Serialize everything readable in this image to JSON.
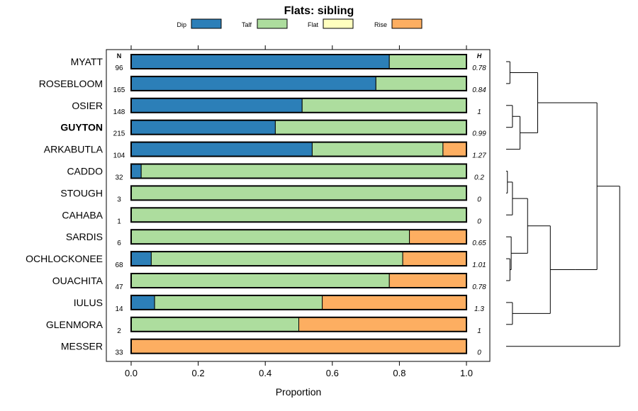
{
  "chart_data": {
    "type": "bar",
    "title": "Flats: sibling",
    "xlabel": "Proportion",
    "ylabel": "",
    "xlim": [
      0,
      1
    ],
    "x_ticks": [
      "0.0",
      "0.2",
      "0.4",
      "0.6",
      "0.8",
      "1.0"
    ],
    "x_tick_values": [
      0,
      0.2,
      0.4,
      0.6,
      0.8,
      1.0
    ],
    "n_header": "N",
    "h_header": "H",
    "highlight_category": "GUYTON",
    "legend": [
      {
        "name": "Dip",
        "color": "#2c7fb8"
      },
      {
        "name": "Talf",
        "color": "#addd9e"
      },
      {
        "name": "Flat",
        "color": "#ffffbf"
      },
      {
        "name": "Rise",
        "color": "#fdae61"
      }
    ],
    "categories": [
      "MYATT",
      "ROSEBLOOM",
      "OSIER",
      "GUYTON",
      "ARKABUTLA",
      "CADDO",
      "STOUGH",
      "CAHABA",
      "SARDIS",
      "OCHLOCKONEE",
      "OUACHITA",
      "IULUS",
      "GLENMORA",
      "MESSER"
    ],
    "n": [
      "96",
      "165",
      "148",
      "215",
      "104",
      "32",
      "3",
      "1",
      "6",
      "68",
      "47",
      "14",
      "2",
      "33"
    ],
    "h": [
      "0.78",
      "0.84",
      "1",
      "0.99",
      "1.27",
      "0.2",
      "0",
      "0",
      "0.65",
      "1.01",
      "0.78",
      "1.3",
      "1",
      "0"
    ],
    "series": [
      {
        "name": "Dip",
        "values": [
          0.77,
          0.73,
          0.51,
          0.43,
          0.54,
          0.03,
          0,
          0,
          0,
          0.06,
          0,
          0.07,
          0,
          0
        ]
      },
      {
        "name": "Talf",
        "values": [
          0.23,
          0.27,
          0.49,
          0.57,
          0.39,
          0.97,
          1,
          1,
          0.83,
          0.75,
          0.77,
          0.5,
          0.5,
          0
        ]
      },
      {
        "name": "Flat",
        "values": [
          0,
          0,
          0,
          0,
          0,
          0,
          0,
          0,
          0,
          0,
          0,
          0,
          0,
          0
        ]
      },
      {
        "name": "Rise",
        "values": [
          0,
          0,
          0,
          0,
          0.07,
          0,
          0,
          0,
          0.17,
          0.19,
          0.23,
          0.43,
          0.5,
          1
        ]
      }
    ],
    "dendrogram": {
      "leaves": [
        "MYATT",
        "ROSEBLOOM",
        "OSIER",
        "GUYTON",
        "ARKABUTLA",
        "CADDO",
        "STOUGH",
        "CAHABA",
        "SARDIS",
        "OCHLOCKONEE",
        "OUACHITA",
        "IULUS",
        "GLENMORA",
        "MESSER"
      ],
      "tree": [
        [
          [
            [
              "MYATT",
              "ROSEBLOOM",
              0.03
            ],
            [
              [
                "OSIER",
                "GUYTON",
                0.05
              ],
              "ARKABUTLA",
              0.11
            ],
            0.25
          ],
          [
            [
              [
                [
                  [
                    "CADDO",
                    "STOUGH",
                    0.01
                  ],
                  "CAHABA",
                  0.05
                ],
                [
                  "SARDIS",
                  [
                    "OCHLOCKONEE",
                    "OUACHITA",
                    0.03
                  ],
                  0.04
                ],
                0.17
              ],
              [
                "IULUS",
                "GLENMORA",
                0.05
              ],
              0.35
            ],
            0.55
          ],
          0.72
        ],
        "MESSER",
        0.9
      ]
    }
  }
}
